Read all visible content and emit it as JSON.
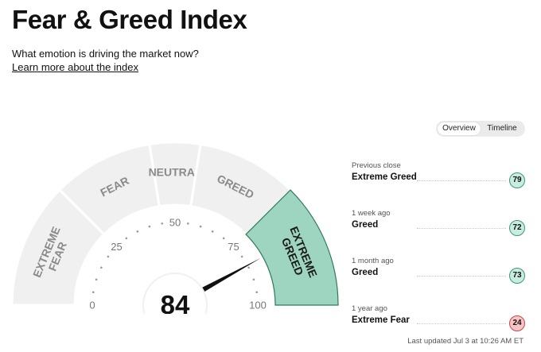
{
  "header": {
    "title": "Fear & Greed Index",
    "subtitle": "What emotion is driving the market now?",
    "learn_more": "Learn more about the index"
  },
  "view_toggle": {
    "options": [
      {
        "label": "Overview",
        "active": true
      },
      {
        "label": "Timeline",
        "active": false
      }
    ]
  },
  "gauge": {
    "value": "84",
    "value_number": 84,
    "scale_labels": [
      "0",
      "25",
      "50",
      "75",
      "100"
    ],
    "zones": [
      {
        "label": "EXTREME FEAR",
        "lines": [
          "EXTREME",
          "FEAR"
        ],
        "from": 0,
        "to": 25,
        "active": false
      },
      {
        "label": "FEAR",
        "lines": [
          "FEAR"
        ],
        "from": 25,
        "to": 45,
        "active": false
      },
      {
        "label": "NEUTRAL",
        "lines": [
          "NEUTRAL"
        ],
        "from": 45,
        "to": 55,
        "active": false
      },
      {
        "label": "GREED",
        "lines": [
          "GREED"
        ],
        "from": 55,
        "to": 75,
        "active": false
      },
      {
        "label": "EXTREME GREED",
        "lines": [
          "EXTREME",
          "GREED"
        ],
        "from": 75,
        "to": 100,
        "active": true
      }
    ]
  },
  "history": [
    {
      "label": "Previous close",
      "value": "Extreme Greed",
      "score": "79",
      "tone": "greed"
    },
    {
      "label": "1 week ago",
      "value": "Greed",
      "score": "72",
      "tone": "greed"
    },
    {
      "label": "1 month ago",
      "value": "Greed",
      "score": "73",
      "tone": "greed"
    },
    {
      "label": "1 year ago",
      "value": "Extreme Fear",
      "score": "24",
      "tone": "fear"
    }
  ],
  "footer": {
    "last_updated": "Last updated Jul 3 at 10:26 AM ET"
  },
  "colors": {
    "zone_fill": "#f0f0f0",
    "active_zone_fill": "#9ed5c1",
    "active_zone_stroke": "#2f7a5c",
    "zone_text": "#8a8a8a",
    "active_zone_text": "#1a1a1a",
    "needle": "#111111",
    "greed_badge_bg": "#c9ece0",
    "greed_badge_border": "#3c9a76",
    "fear_badge_bg": "#f7c4c4",
    "fear_badge_border": "#c94848"
  }
}
